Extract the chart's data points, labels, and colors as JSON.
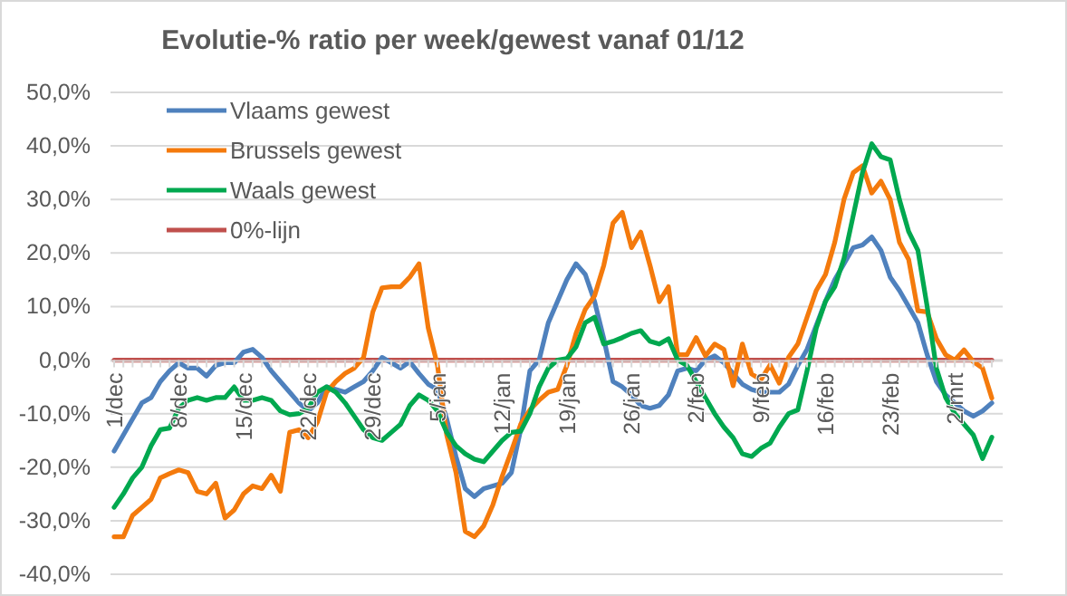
{
  "chart_data": {
    "type": "line",
    "title": "Evolutie-% ratio per week/gewest  vanaf 01/12",
    "categories": [
      "1/dec",
      null,
      null,
      null,
      null,
      null,
      null,
      "8/dec",
      null,
      null,
      null,
      null,
      null,
      null,
      "15/dec",
      null,
      null,
      null,
      null,
      null,
      null,
      "22/dec",
      null,
      null,
      null,
      null,
      null,
      null,
      "29/dec",
      null,
      null,
      null,
      null,
      null,
      null,
      "5/jan",
      null,
      null,
      null,
      null,
      null,
      null,
      "12/jan",
      null,
      null,
      null,
      null,
      null,
      null,
      "19/jan",
      null,
      null,
      null,
      null,
      null,
      null,
      "26/jan",
      null,
      null,
      null,
      null,
      null,
      null,
      "2/feb",
      null,
      null,
      null,
      null,
      null,
      null,
      "9/feb",
      null,
      null,
      null,
      null,
      null,
      null,
      "16/feb",
      null,
      null,
      null,
      null,
      null,
      null,
      "23/feb",
      null,
      null,
      null,
      null,
      null,
      null,
      "2/mrt",
      null,
      null,
      null,
      null
    ],
    "series": [
      {
        "name": "Vlaams gewest",
        "color": "#4f81bd",
        "values": [
          -17,
          -14,
          -11,
          -8,
          -7,
          -4,
          -2,
          -0.5,
          -1.5,
          -1.5,
          -3,
          -1,
          -0.5,
          -0.5,
          1.5,
          2,
          0.5,
          -2,
          -4,
          -6,
          -8,
          -9.5,
          -8,
          -5,
          -5.5,
          -6,
          -5,
          -4,
          -2,
          0.5,
          -0.5,
          -1.5,
          -0.3,
          -2.5,
          -4.5,
          -5.5,
          -11,
          -18,
          -24,
          -25.5,
          -24,
          -23.5,
          -23,
          -21,
          -13,
          -2,
          0,
          7,
          11,
          15,
          18,
          16,
          11,
          4,
          -4,
          -5,
          -6.5,
          -8.5,
          -9,
          -8.5,
          -6.5,
          -2,
          -1.5,
          -2,
          0,
          0.8,
          -0.5,
          -2.5,
          -4.5,
          -5.5,
          -6,
          -6,
          -6,
          -4.5,
          -1,
          2,
          6.5,
          11,
          15,
          18,
          21,
          21.5,
          23,
          20.5,
          15.5,
          13,
          10,
          7,
          1,
          -4,
          -6.5,
          -8,
          -9.5,
          -10.5,
          -9.5,
          -8
        ]
      },
      {
        "name": "Brussels gewest",
        "color": "#f47a0c",
        "values": [
          -33,
          -33,
          -29,
          -27.5,
          -26,
          -22,
          -21.2,
          -20.5,
          -21,
          -24.5,
          -25,
          -23,
          -29.5,
          -28,
          -25,
          -23.5,
          -24,
          -21.5,
          -24.5,
          -13.5,
          -13,
          -14.5,
          -11.6,
          -6,
          -4,
          -2.5,
          -1.5,
          0.5,
          9,
          13.5,
          13.7,
          13.7,
          15.5,
          18,
          6,
          -1,
          -14,
          -21,
          -32,
          -33,
          -31,
          -27,
          -21.7,
          -17,
          -12,
          -9.3,
          -7.5,
          -6,
          -5.5,
          -1,
          5,
          9.5,
          12,
          17.7,
          25.6,
          27.6,
          21,
          23.9,
          17.7,
          10.9,
          13.7,
          1,
          1,
          4.2,
          0.8,
          3,
          2,
          -4.8,
          3,
          -2.6,
          -3.7,
          -0.9,
          -4.3,
          0.5,
          3,
          8,
          13,
          16,
          22,
          30,
          35,
          36.3,
          31.2,
          33.4,
          30,
          22,
          18.8,
          9.2,
          9,
          4,
          1,
          0,
          1.9,
          -0.3,
          -1.5,
          -7.1
        ]
      },
      {
        "name": "Waals gewest",
        "color": "#00a84f",
        "values": [
          -27.5,
          -25,
          -22,
          -20,
          -16,
          -13,
          -12.7,
          -9,
          -7.5,
          -7,
          -7.5,
          -7,
          -7,
          -5,
          -7.5,
          -7.5,
          -7,
          -7.5,
          -9.5,
          -10.2,
          -10,
          -9,
          -6,
          -5,
          -6,
          -8,
          -10.5,
          -13,
          -14.5,
          -15,
          -13.5,
          -12,
          -8.5,
          -6.5,
          -7.5,
          -9.5,
          -13.5,
          -16,
          -17.5,
          -18.5,
          -19,
          -17,
          -15,
          -13.5,
          -13.3,
          -10,
          -5,
          -1.5,
          0,
          0.3,
          2.5,
          7,
          8,
          3,
          3.5,
          4.2,
          5,
          5.5,
          3.5,
          3,
          4,
          0,
          -1,
          -4,
          -7,
          -10,
          -12.5,
          -14.5,
          -17.5,
          -18,
          -16.5,
          -15.5,
          -12.5,
          -10,
          -9.3,
          -2,
          6,
          11,
          13.7,
          19,
          27,
          35,
          40.4,
          38,
          37.4,
          30,
          24,
          20.5,
          10,
          -1.5,
          -7,
          -10,
          -12,
          -14,
          -18.4,
          -14.4
        ]
      },
      {
        "name": "0%-lijn",
        "color": "#c0504d",
        "values": [
          0,
          0,
          0,
          0,
          0,
          0,
          0,
          0,
          0,
          0,
          0,
          0,
          0,
          0,
          0,
          0,
          0,
          0,
          0,
          0,
          0,
          0,
          0,
          0,
          0,
          0,
          0,
          0,
          0,
          0,
          0,
          0,
          0,
          0,
          0,
          0,
          0,
          0,
          0,
          0,
          0,
          0,
          0,
          0,
          0,
          0,
          0,
          0,
          0,
          0,
          0,
          0,
          0,
          0,
          0,
          0,
          0,
          0,
          0,
          0,
          0,
          0,
          0,
          0,
          0,
          0,
          0,
          0,
          0,
          0,
          0,
          0,
          0,
          0,
          0,
          0,
          0,
          0,
          0,
          0,
          0,
          0,
          0,
          0,
          0,
          0,
          0,
          0,
          0,
          0,
          0,
          0,
          0,
          0,
          0,
          0
        ]
      }
    ],
    "ylim": [
      -40,
      50
    ],
    "yticks": [
      {
        "value": -40,
        "label": "-40,0%"
      },
      {
        "value": -30,
        "label": "-30,0%"
      },
      {
        "value": -20,
        "label": "-20,0%"
      },
      {
        "value": -10,
        "label": "-10,0%"
      },
      {
        "value": 0,
        "label": "0,0%"
      },
      {
        "value": 10,
        "label": "10,0%"
      },
      {
        "value": 20,
        "label": "20,0%"
      },
      {
        "value": 30,
        "label": "30,0%"
      },
      {
        "value": 40,
        "label": "40,0%"
      },
      {
        "value": 50,
        "label": "50,0%"
      }
    ],
    "grid": "y",
    "legend": "top left",
    "marker": "none",
    "line_style": "solid"
  }
}
